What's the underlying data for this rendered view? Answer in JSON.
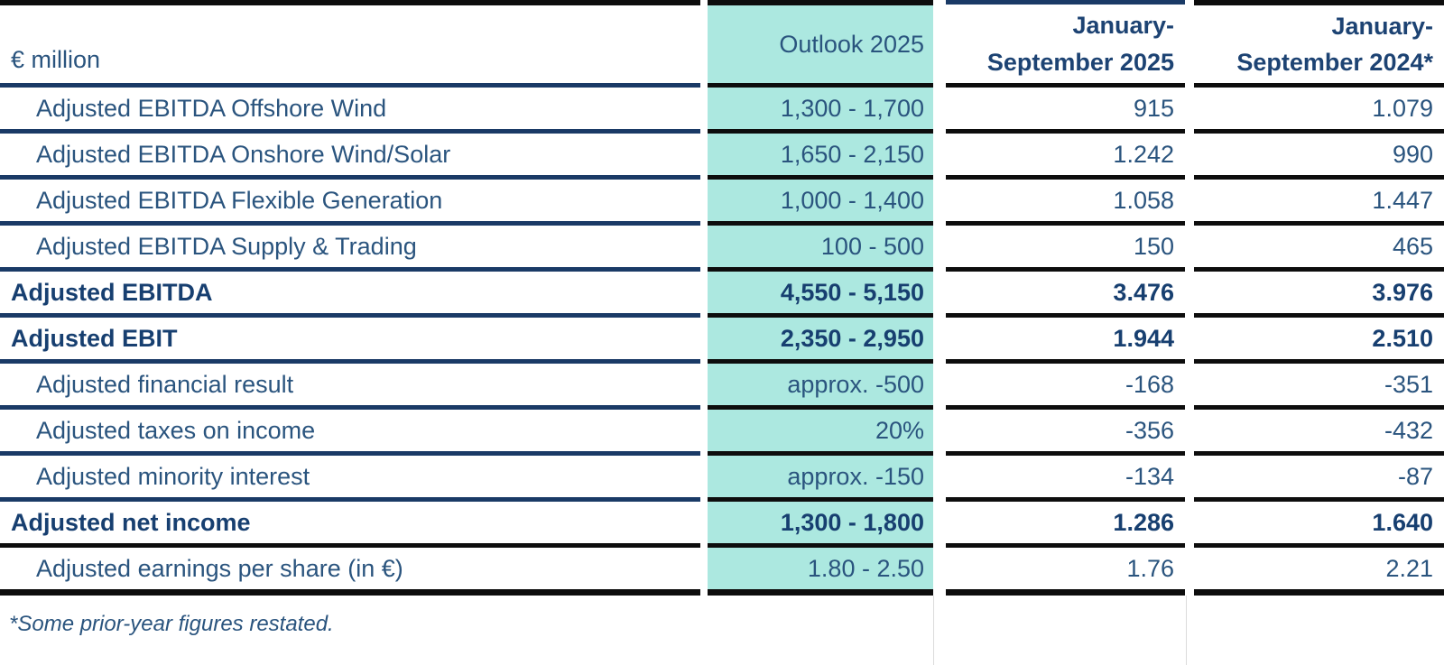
{
  "table": {
    "unit_label": "€ million",
    "columns": [
      {
        "label": "Outlook 2025"
      },
      {
        "label": "January-September 2025",
        "line1": "January-",
        "line2": "September 2025"
      },
      {
        "label": "January-September 2024*",
        "line1": "January-",
        "line2": "September 2024*"
      }
    ],
    "rows": [
      {
        "label": "Adjusted EBITDA Offshore Wind",
        "outlook": "1,300 - 1,700",
        "jan_sep_2025": "915",
        "jan_sep_2024": "1.079"
      },
      {
        "label": "Adjusted EBITDA Onshore Wind/Solar",
        "outlook": "1,650 - 2,150",
        "jan_sep_2025": "1.242",
        "jan_sep_2024": "990"
      },
      {
        "label": "Adjusted EBITDA Flexible Generation",
        "outlook": "1,000 - 1,400",
        "jan_sep_2025": "1.058",
        "jan_sep_2024": "1.447"
      },
      {
        "label": "Adjusted EBITDA Supply & Trading",
        "outlook": "100 - 500",
        "jan_sep_2025": "150",
        "jan_sep_2024": "465"
      },
      {
        "label": "Adjusted EBITDA",
        "outlook": "4,550 - 5,150",
        "jan_sep_2025": "3.476",
        "jan_sep_2024": "3.976"
      },
      {
        "label": "Adjusted EBIT",
        "outlook": "2,350 - 2,950",
        "jan_sep_2025": "1.944",
        "jan_sep_2024": "2.510"
      },
      {
        "label": "Adjusted financial result",
        "outlook": "approx. -500",
        "jan_sep_2025": "-168",
        "jan_sep_2024": "-351"
      },
      {
        "label": "Adjusted taxes on income",
        "outlook": "20%",
        "jan_sep_2025": "-356",
        "jan_sep_2024": "-432"
      },
      {
        "label": "Adjusted minority interest",
        "outlook": "approx. -150",
        "jan_sep_2025": "-134",
        "jan_sep_2024": "-87"
      },
      {
        "label": "Adjusted net income",
        "outlook": "1,300 - 1,800",
        "jan_sep_2025": "1.286",
        "jan_sep_2024": "1.640"
      },
      {
        "label": "Adjusted earnings per share (in €)",
        "outlook": "1.80 - 2.50",
        "jan_sep_2025": "1.76",
        "jan_sep_2024": "2.21"
      }
    ],
    "footnote": "*Some prior-year figures restated."
  },
  "colors": {
    "outlook_highlight": "#ace8e0",
    "text_regular": "#2a547e",
    "text_bold": "#173f70",
    "border_navy": "#1a3a66",
    "border_black": "#0d0d0d"
  }
}
